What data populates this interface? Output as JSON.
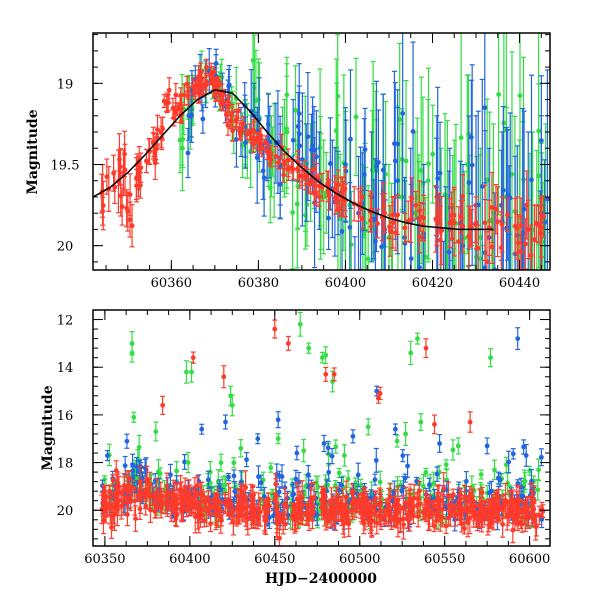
{
  "chart_data": [
    {
      "type": "scatter",
      "title": "",
      "xlabel": "",
      "ylabel": "Magnitude",
      "xlim": [
        60342,
        60447
      ],
      "ylim": [
        20.15,
        18.69
      ],
      "y_inverted": true,
      "xticks": [
        60360,
        60380,
        60400,
        60420,
        60440
      ],
      "xtick_labels": [
        "60360",
        "60380",
        "60400",
        "60420",
        "60440"
      ],
      "yticks": [
        19,
        19.5,
        20
      ],
      "ytick_labels": [
        "19",
        "19.5",
        "20"
      ],
      "grid": false,
      "legend": "none",
      "series": [
        {
          "color": "#ff3a2a",
          "marker": "circle",
          "error_bars": true,
          "x": [
            60344,
            60347,
            60349,
            60350,
            60352,
            60353,
            60355,
            60356,
            60358,
            60359,
            60361,
            60362,
            60364,
            60365,
            60367,
            60368,
            60369,
            60370,
            60371,
            60372,
            60374,
            60375,
            60376,
            60378,
            60379,
            60380,
            60382,
            60384,
            60386,
            60388,
            60390,
            60392,
            60394,
            60396,
            60398,
            60400,
            60403,
            60406,
            60409,
            60412,
            60415,
            60418,
            60421,
            60424,
            60427,
            60430,
            60433,
            60436,
            60439,
            60442,
            60445
          ],
          "y": [
            19.68,
            19.64,
            19.55,
            19.79,
            19.63,
            19.52,
            19.42,
            19.38,
            19.28,
            19.12,
            19.18,
            19.14,
            19.05,
            19.02,
            18.97,
            18.99,
            18.95,
            19.02,
            19.06,
            19.12,
            19.18,
            19.22,
            19.28,
            19.3,
            19.35,
            19.36,
            19.42,
            19.45,
            19.5,
            19.53,
            19.57,
            19.6,
            19.63,
            19.66,
            19.7,
            19.72,
            19.75,
            19.78,
            19.8,
            19.81,
            19.84,
            19.83,
            19.85,
            19.86,
            19.88,
            19.86,
            19.89,
            19.87,
            19.88,
            19.9,
            19.89
          ],
          "yerr": [
            0.12,
            0.1,
            0.14,
            0.12,
            0.1,
            0.09,
            0.08,
            0.07,
            0.07,
            0.06,
            0.06,
            0.06,
            0.05,
            0.05,
            0.05,
            0.05,
            0.05,
            0.05,
            0.05,
            0.05,
            0.05,
            0.05,
            0.05,
            0.05,
            0.05,
            0.05,
            0.05,
            0.06,
            0.06,
            0.06,
            0.06,
            0.07,
            0.07,
            0.07,
            0.08,
            0.1,
            0.1,
            0.1,
            0.12,
            0.12,
            0.14,
            0.14,
            0.15,
            0.15,
            0.16,
            0.16,
            0.17,
            0.17,
            0.17,
            0.18,
            0.18
          ]
        },
        {
          "color": "#33dd44",
          "marker": "circle",
          "error_bars": true,
          "x": [
            60362,
            60365,
            60368,
            60371,
            60374,
            60377,
            60380,
            60383,
            60386,
            60389,
            60392,
            60395,
            60398,
            60401,
            60404,
            60407,
            60410,
            60413,
            60416,
            60419,
            60422,
            60425,
            60428,
            60431,
            60434,
            60437,
            60440,
            60443,
            60446
          ],
          "y": [
            19.35,
            19.1,
            19.0,
            19.05,
            19.2,
            19.3,
            19.1,
            19.45,
            19.4,
            19.6,
            19.55,
            19.7,
            19.4,
            19.75,
            19.9,
            19.5,
            19.95,
            19.7,
            19.8,
            19.6,
            19.9,
            19.85,
            19.5,
            19.95,
            19.8,
            19.7,
            19.95,
            19.9,
            19.85
          ],
          "yerr": [
            0.2,
            0.15,
            0.12,
            0.12,
            0.15,
            0.2,
            0.25,
            0.25,
            0.3,
            0.3,
            0.3,
            0.35,
            0.4,
            0.4,
            0.4,
            0.45,
            0.45,
            0.45,
            0.5,
            0.5,
            0.5,
            0.5,
            0.55,
            0.55,
            0.55,
            0.55,
            0.6,
            0.6,
            0.6
          ]
        },
        {
          "color": "#2266dd",
          "marker": "circle",
          "error_bars": true,
          "x": [
            60364,
            60367,
            60370,
            60373,
            60376,
            60379,
            60382,
            60385,
            60388,
            60391,
            60394,
            60397,
            60400,
            60403,
            60406,
            60409,
            60412,
            60415,
            60418,
            60421,
            60424,
            60427,
            60430,
            60433,
            60436,
            60439,
            60442,
            60445
          ],
          "y": [
            19.2,
            19.05,
            18.98,
            19.1,
            19.3,
            19.2,
            19.4,
            19.5,
            19.35,
            19.55,
            19.6,
            19.65,
            19.5,
            19.8,
            19.7,
            19.9,
            19.6,
            19.85,
            19.95,
            19.7,
            19.9,
            20.0,
            19.75,
            19.95,
            19.85,
            20.05,
            19.9,
            19.8
          ],
          "yerr": [
            0.15,
            0.12,
            0.1,
            0.12,
            0.15,
            0.2,
            0.2,
            0.25,
            0.25,
            0.3,
            0.3,
            0.3,
            0.35,
            0.35,
            0.4,
            0.4,
            0.45,
            0.45,
            0.45,
            0.5,
            0.5,
            0.5,
            0.55,
            0.55,
            0.55,
            0.6,
            0.6,
            0.6
          ]
        }
      ],
      "model_curve": {
        "color": "#000000",
        "x": [
          60342,
          60346,
          60350,
          60354,
          60358,
          60362,
          60366,
          60370,
          60374,
          60378,
          60382,
          60386,
          60390,
          60394,
          60398,
          60402,
          60406,
          60410,
          60414,
          60418,
          60422,
          60426,
          60430,
          60434
        ],
        "y": [
          19.7,
          19.64,
          19.55,
          19.44,
          19.32,
          19.2,
          19.1,
          19.04,
          19.06,
          19.17,
          19.3,
          19.42,
          19.52,
          19.61,
          19.68,
          19.74,
          19.79,
          19.83,
          19.86,
          19.88,
          19.89,
          19.9,
          19.9,
          19.9
        ]
      }
    },
    {
      "type": "scatter",
      "title": "",
      "xlabel": "HJD−2400000",
      "ylabel": "Magnitude",
      "xlim": [
        60343,
        60612
      ],
      "ylim": [
        21.5,
        11.6
      ],
      "y_inverted": true,
      "xticks": [
        60350,
        60400,
        60450,
        60500,
        60550,
        60600
      ],
      "xtick_labels": [
        "60350",
        "60400",
        "60450",
        "60500",
        "60550",
        "60600"
      ],
      "yticks": [
        12,
        14,
        16,
        18,
        20
      ],
      "ytick_labels": [
        "12",
        "14",
        "16",
        "18",
        "20"
      ],
      "grid": false,
      "legend": "none",
      "series": [
        {
          "color": "#33dd44",
          "marker": "circle",
          "error_bars": true,
          "outliers_x": [
            60366,
            60366,
            60367,
            60380,
            60398,
            60401,
            60424,
            60425,
            60465,
            60470,
            60478,
            60480,
            60484,
            60522,
            60530,
            60534,
            60536,
            60577,
            60399,
            60430,
            60452,
            60467,
            60491,
            60505,
            60527,
            60558
          ],
          "outliers_y": [
            13.0,
            13.4,
            16.1,
            16.7,
            14.2,
            14.2,
            15.2,
            15.6,
            12.2,
            13.2,
            13.6,
            13.5,
            14.6,
            17.1,
            13.4,
            12.8,
            16.3,
            13.6,
            18.0,
            17.4,
            17.0,
            17.5,
            17.7,
            16.5,
            16.8,
            17.3
          ]
        },
        {
          "color": "#2266dd",
          "marker": "circle",
          "error_bars": true,
          "outliers_x": [
            60407,
            60421,
            60440,
            60452,
            60463,
            60479,
            60496,
            60510,
            60521,
            60547,
            60575,
            60593,
            60598
          ],
          "outliers_y": [
            16.6,
            16.3,
            17.0,
            16.2,
            17.6,
            17.2,
            16.9,
            15.0,
            16.6,
            17.2,
            17.3,
            12.8,
            17.7
          ]
        },
        {
          "color": "#ff3a2a",
          "marker": "circle",
          "error_bars": true,
          "outliers_x": [
            60384,
            60402,
            60420,
            60450,
            60458,
            60480,
            60485,
            60511,
            60512,
            60539,
            60544,
            60565
          ],
          "outliers_y": [
            15.6,
            13.6,
            14.4,
            12.4,
            13.0,
            14.3,
            14.3,
            15.3,
            15.1,
            13.2,
            16.4,
            16.3
          ]
        }
      ],
      "baseline": {
        "x": [
          60350,
          60360,
          60370,
          60380,
          60390,
          60400,
          60420,
          60450,
          60480,
          60510,
          60540,
          60570,
          60600,
          60608
        ],
        "y": [
          19.7,
          19.4,
          19.1,
          19.5,
          19.7,
          19.8,
          19.9,
          20.0,
          20.0,
          20.0,
          20.0,
          20.0,
          20.0,
          20.0
        ]
      }
    }
  ]
}
